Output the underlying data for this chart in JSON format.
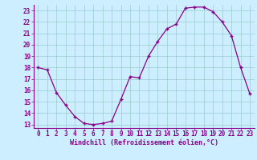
{
  "x": [
    0,
    1,
    2,
    3,
    4,
    5,
    6,
    7,
    8,
    9,
    10,
    11,
    12,
    13,
    14,
    15,
    16,
    17,
    18,
    19,
    20,
    21,
    22,
    23
  ],
  "y": [
    18,
    17.8,
    15.8,
    14.7,
    13.7,
    13.1,
    13.0,
    13.1,
    13.3,
    15.2,
    17.2,
    17.1,
    19.0,
    20.3,
    21.4,
    21.8,
    23.2,
    23.3,
    23.3,
    22.9,
    22.0,
    20.8,
    18.0,
    15.7
  ],
  "xlabel": "Windchill (Refroidissement éolien,°C)",
  "xlim": [
    -0.5,
    23.5
  ],
  "ylim": [
    12.7,
    23.5
  ],
  "yticks": [
    13,
    14,
    15,
    16,
    17,
    18,
    19,
    20,
    21,
    22,
    23
  ],
  "xticks": [
    0,
    1,
    2,
    3,
    4,
    5,
    6,
    7,
    8,
    9,
    10,
    11,
    12,
    13,
    14,
    15,
    16,
    17,
    18,
    19,
    20,
    21,
    22,
    23
  ],
  "line_color": "#880088",
  "marker": "+",
  "markersize": 3.5,
  "linewidth": 0.9,
  "bg_color": "#cceeff",
  "grid_color": "#99cccc",
  "spine_color": "#880088",
  "tick_label_color": "#880088",
  "xlabel_color": "#880088",
  "tick_fontsize": 5.5,
  "xlabel_fontsize": 6.0
}
